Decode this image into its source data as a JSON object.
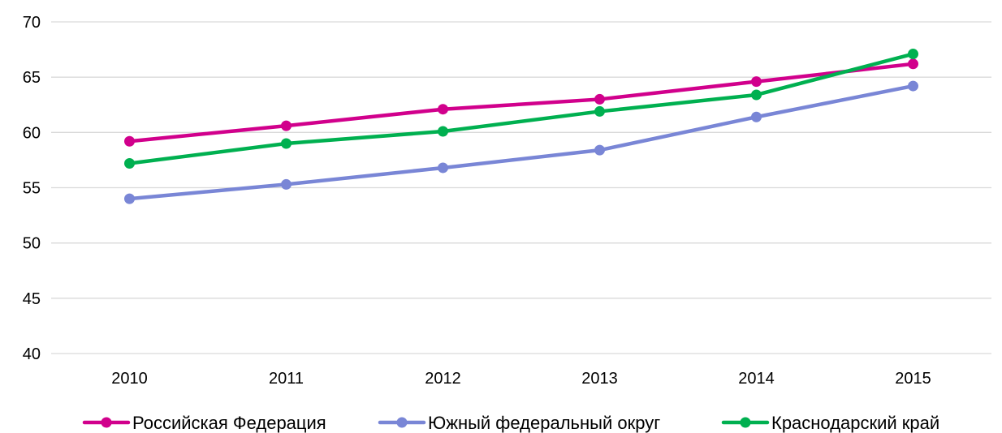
{
  "chart_data": {
    "type": "line",
    "title": "",
    "xlabel": "",
    "ylabel": "",
    "categories": [
      "2010",
      "2011",
      "2012",
      "2013",
      "2014",
      "2015"
    ],
    "ylim": [
      40,
      70
    ],
    "yticks": [
      "40",
      "45",
      "50",
      "55",
      "60",
      "65",
      "70"
    ],
    "grid": "horizontal",
    "legend_position": "bottom",
    "series": [
      {
        "name": "Российская Федерация",
        "color": "#D1008C",
        "values": [
          59.2,
          60.6,
          62.1,
          63.0,
          64.6,
          66.2
        ]
      },
      {
        "name": "Южный федеральный  округ",
        "color": "#7986D6",
        "values": [
          54.0,
          55.3,
          56.8,
          58.4,
          61.4,
          64.2
        ]
      },
      {
        "name": "Краснодарский край",
        "color": "#00B050",
        "values": [
          57.2,
          59.0,
          60.1,
          61.9,
          63.4,
          67.1
        ]
      }
    ]
  }
}
